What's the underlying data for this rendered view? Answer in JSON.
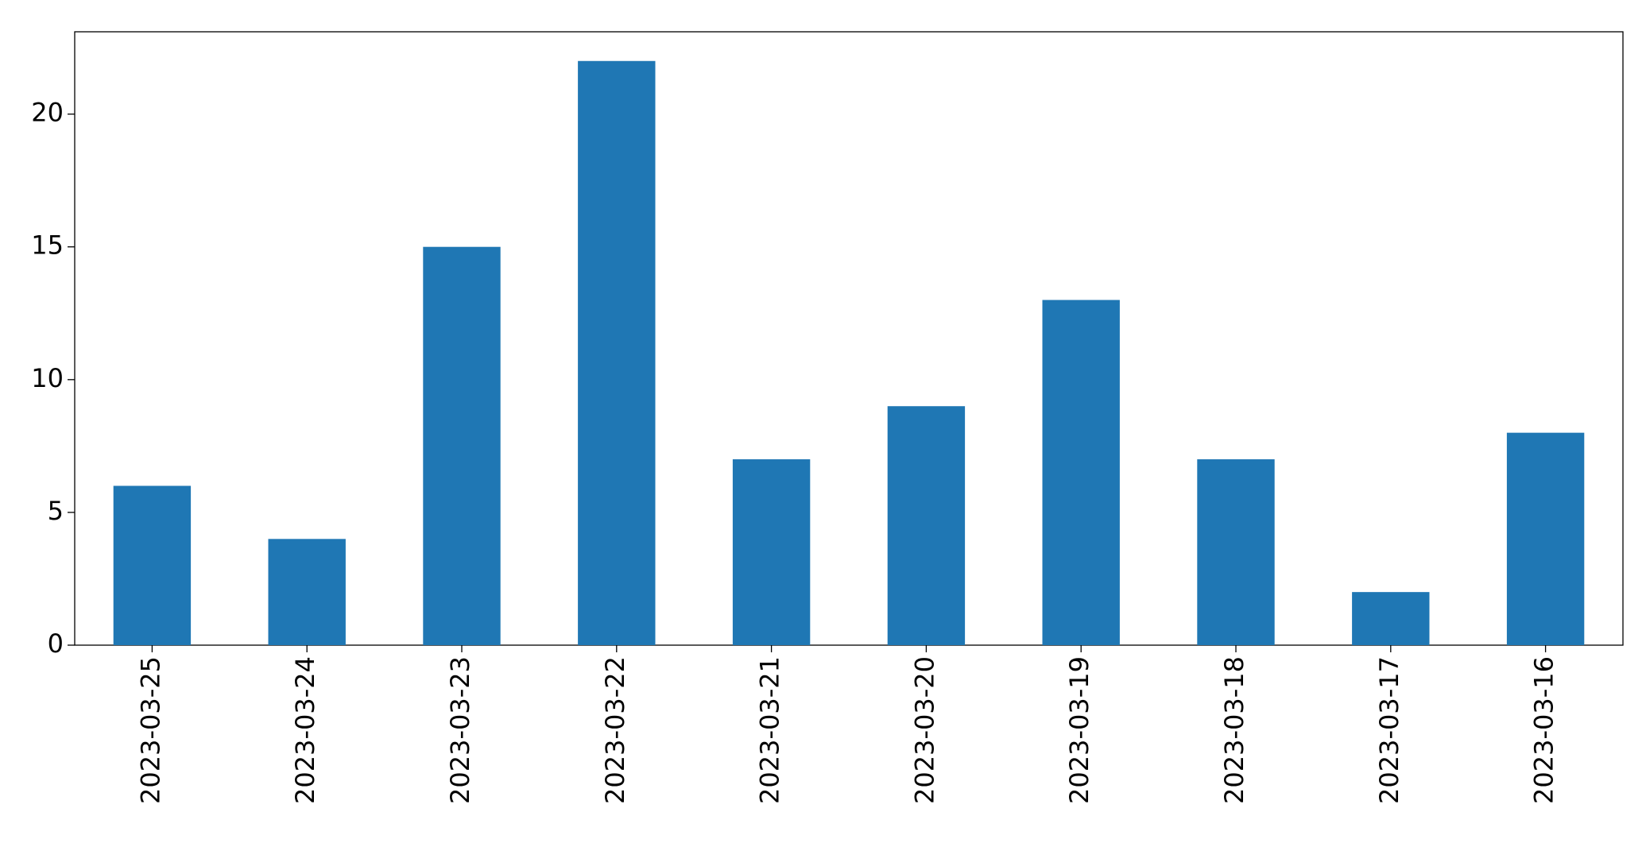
{
  "chart_data": {
    "type": "bar",
    "categories": [
      "2023-03-25",
      "2023-03-24",
      "2023-03-23",
      "2023-03-22",
      "2023-03-21",
      "2023-03-20",
      "2023-03-19",
      "2023-03-18",
      "2023-03-17",
      "2023-03-16"
    ],
    "values": [
      6,
      4,
      15,
      22,
      7,
      9,
      13,
      7,
      2,
      8
    ],
    "color": "#1f77b4",
    "ylim": [
      0,
      23.1
    ],
    "yticks": [
      0,
      5,
      10,
      15,
      20
    ],
    "grid": false
  }
}
